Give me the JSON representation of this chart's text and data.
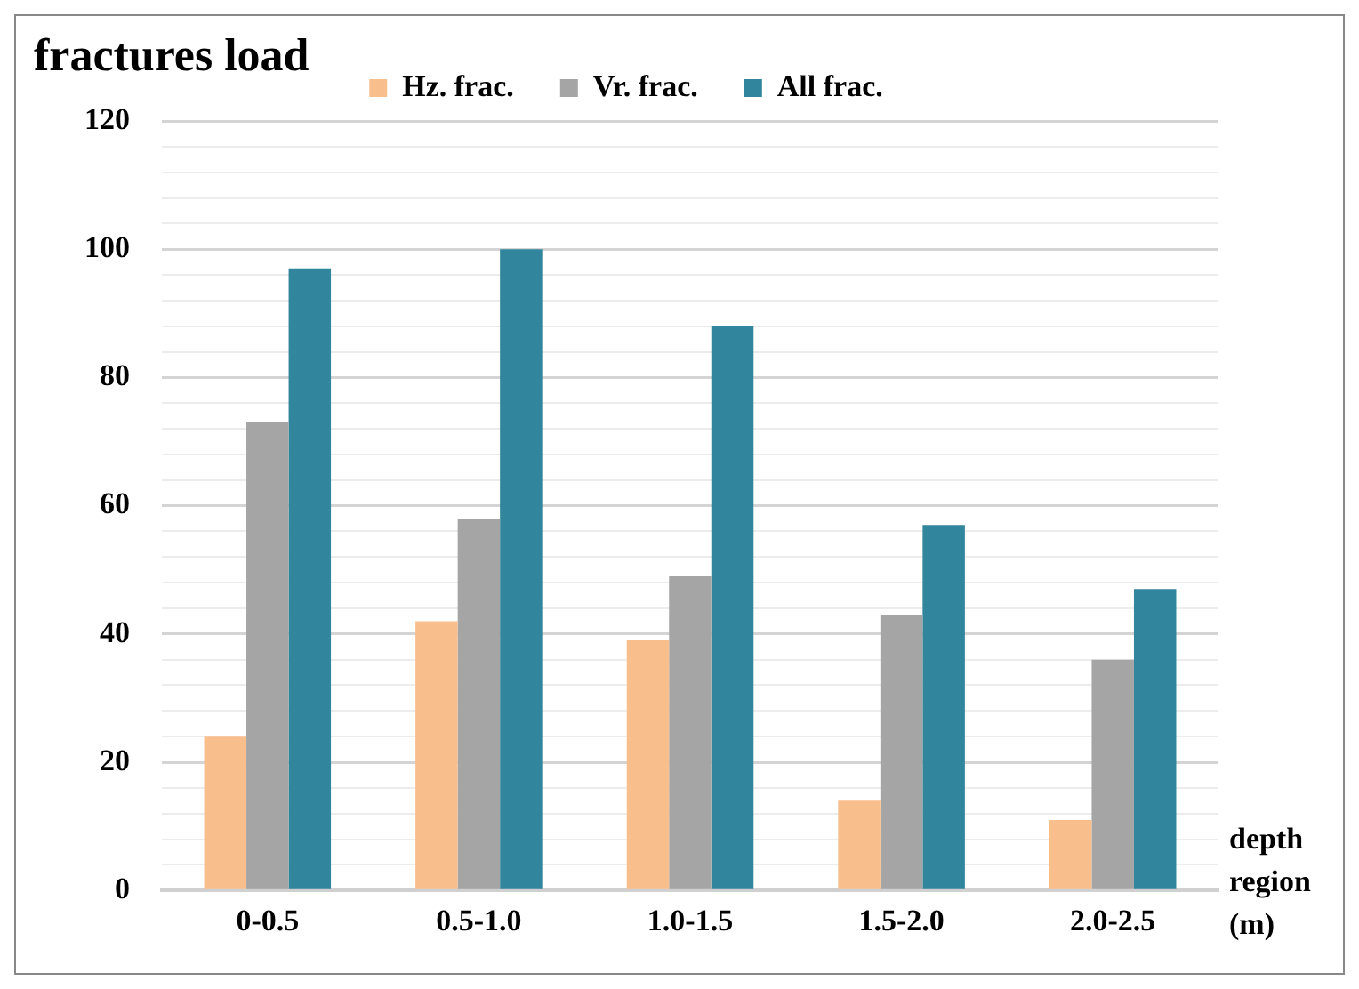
{
  "chart_data": {
    "type": "bar",
    "ylabel": "fractures load",
    "xlabel": "depth region (m)",
    "categories": [
      "0-0.5",
      "0.5-1.0",
      "1.0-1.5",
      "1.5-2.0",
      "2.0-2.5"
    ],
    "series": [
      {
        "name": "Hz. frac.",
        "color": "#f8bf8d",
        "values": [
          24,
          42,
          39,
          14,
          11
        ]
      },
      {
        "name": "Vr. frac.",
        "color": "#a5a5a5",
        "values": [
          73,
          58,
          49,
          43,
          36
        ]
      },
      {
        "name": "All frac.",
        "color": "#31859c",
        "values": [
          97,
          100,
          88,
          57,
          47
        ]
      }
    ],
    "ylim": [
      0,
      120
    ],
    "yticks": [
      0,
      {
        "value": 4,
        "label": null
      },
      {
        "value": 8,
        "label": null
      },
      {
        "value": 12,
        "label": null
      },
      {
        "value": 16,
        "label": null
      },
      20,
      {
        "value": 24,
        "label": null
      },
      {
        "value": 28,
        "label": null
      },
      {
        "value": 32,
        "label": null
      },
      {
        "value": 36,
        "label": null
      },
      40,
      {
        "value": 44,
        "label": null
      },
      {
        "value": 48,
        "label": null
      },
      {
        "value": 52,
        "label": null
      },
      {
        "value": 56,
        "label": null
      },
      60,
      {
        "value": 64,
        "label": null
      },
      {
        "value": 68,
        "label": null
      },
      {
        "value": 72,
        "label": null
      },
      {
        "value": 76,
        "label": null
      },
      80,
      {
        "value": 84,
        "label": null
      },
      {
        "value": 88,
        "label": null
      },
      {
        "value": 92,
        "label": null
      },
      {
        "value": 96,
        "label": null
      },
      100,
      {
        "value": 104,
        "label": null
      },
      {
        "value": 108,
        "label": null
      },
      {
        "value": 112,
        "label": null
      },
      {
        "value": 116,
        "label": null
      },
      120
    ],
    "grid": "y",
    "legend": "top"
  }
}
